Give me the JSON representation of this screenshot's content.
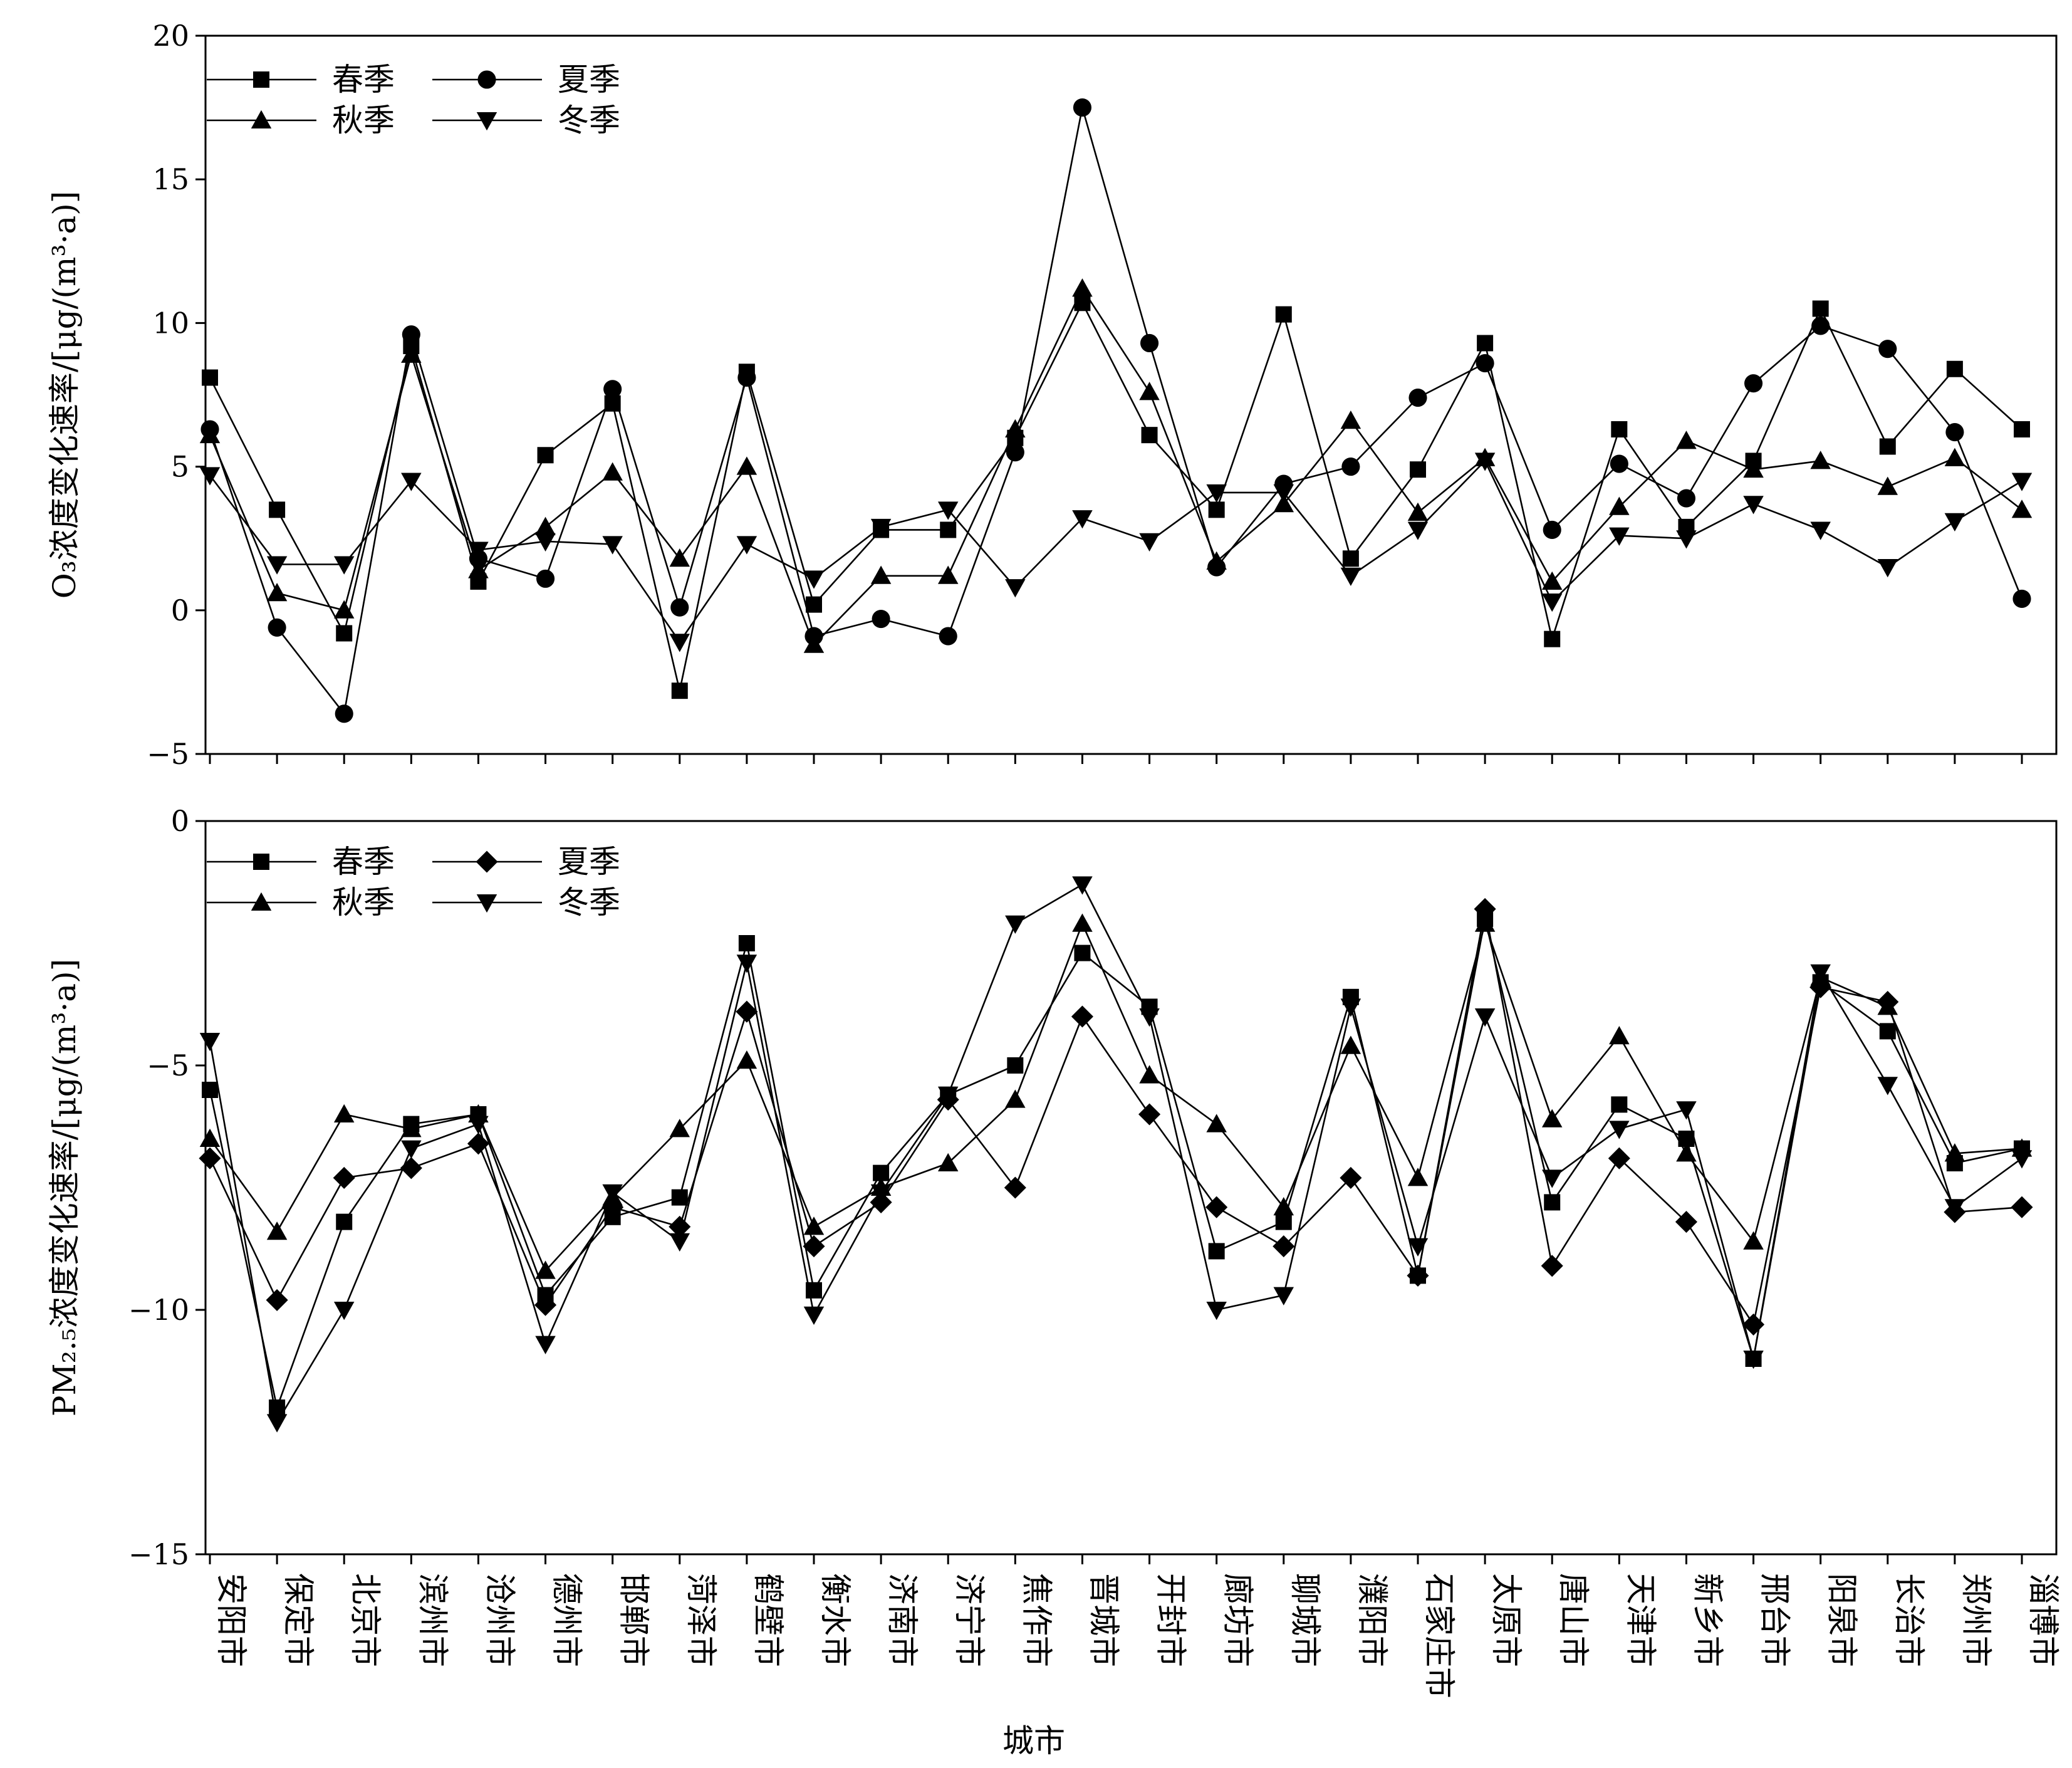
{
  "colors": {
    "line": "#000000",
    "background": "#ffffff"
  },
  "shared_xlabel": "城市",
  "chart_data": [
    {
      "type": "line",
      "ylabel": "O₃浓度变化速率/[μg/(m³·a)]",
      "ylim": [
        -5,
        20
      ],
      "yticks": [
        -5,
        0,
        5,
        10,
        15,
        20
      ],
      "grid": false,
      "legend_position": "top-left",
      "categories": [
        "安阳市",
        "保定市",
        "北京市",
        "滨州市",
        "沧州市",
        "德州市",
        "邯郸市",
        "菏泽市",
        "鹤壁市",
        "衡水市",
        "济南市",
        "济宁市",
        "焦作市",
        "晋城市",
        "开封市",
        "廊坊市",
        "聊城市",
        "濮阳市",
        "石家庄市",
        "太原市",
        "唐山市",
        "天津市",
        "新乡市",
        "邢台市",
        "阳泉市",
        "长治市",
        "郑州市",
        "淄博市"
      ],
      "series": [
        {
          "name": "春季",
          "marker": "square",
          "values": [
            8.1,
            3.5,
            -0.8,
            9.2,
            1.0,
            5.4,
            7.2,
            -2.8,
            8.3,
            0.2,
            2.8,
            2.8,
            6.0,
            10.7,
            6.1,
            3.5,
            10.3,
            1.8,
            4.9,
            9.3,
            -1.0,
            6.3,
            2.9,
            5.2,
            10.5,
            5.7,
            8.4,
            6.3
          ]
        },
        {
          "name": "夏季",
          "marker": "circle",
          "values": [
            6.3,
            -0.6,
            -3.6,
            9.6,
            1.8,
            1.1,
            7.7,
            0.1,
            8.1,
            -0.9,
            -0.3,
            -0.9,
            5.5,
            17.5,
            9.3,
            1.5,
            4.4,
            5.0,
            7.4,
            8.6,
            2.8,
            5.1,
            3.9,
            7.9,
            9.9,
            9.1,
            6.2,
            0.4
          ]
        },
        {
          "name": "秋季",
          "marker": "triangle-up",
          "values": [
            6.1,
            0.6,
            0.0,
            8.9,
            1.4,
            2.9,
            4.8,
            1.8,
            5.0,
            -1.2,
            1.2,
            1.2,
            6.3,
            11.2,
            7.6,
            1.7,
            3.7,
            6.6,
            3.4,
            5.3,
            1.0,
            3.6,
            5.9,
            4.9,
            5.2,
            4.3,
            5.3,
            3.5
          ]
        },
        {
          "name": "冬季",
          "marker": "triangle-down",
          "values": [
            4.7,
            1.6,
            1.6,
            4.5,
            2.1,
            2.4,
            2.3,
            -1.1,
            2.3,
            1.1,
            2.9,
            3.5,
            0.8,
            3.2,
            2.4,
            4.1,
            4.1,
            1.2,
            2.8,
            5.2,
            0.3,
            2.6,
            2.5,
            3.7,
            2.8,
            1.5,
            3.1,
            4.5
          ]
        }
      ]
    },
    {
      "type": "line",
      "ylabel": "PM₂.₅浓度变化速率/[μg/(m³·a)]",
      "ylim": [
        -15,
        0
      ],
      "yticks": [
        -15,
        -10,
        -5,
        0
      ],
      "grid": false,
      "legend_position": "top-left",
      "categories": [
        "安阳市",
        "保定市",
        "北京市",
        "滨州市",
        "沧州市",
        "德州市",
        "邯郸市",
        "菏泽市",
        "鹤壁市",
        "衡水市",
        "济南市",
        "济宁市",
        "焦作市",
        "晋城市",
        "开封市",
        "廊坊市",
        "聊城市",
        "濮阳市",
        "石家庄市",
        "太原市",
        "唐山市",
        "天津市",
        "新乡市",
        "邢台市",
        "阳泉市",
        "长治市",
        "郑州市",
        "淄博市"
      ],
      "series": [
        {
          "name": "春季",
          "marker": "square",
          "values": [
            -5.5,
            -12.0,
            -8.2,
            -6.2,
            -6.0,
            -9.7,
            -8.1,
            -7.7,
            -2.5,
            -9.6,
            -7.2,
            -5.6,
            -5.0,
            -2.7,
            -3.8,
            -8.8,
            -8.2,
            -3.6,
            -9.3,
            -2.0,
            -7.8,
            -5.8,
            -6.5,
            -11.0,
            -3.3,
            -4.3,
            -7.0,
            -6.7
          ]
        },
        {
          "name": "夏季",
          "marker": "diamond",
          "values": [
            -6.9,
            -9.8,
            -7.3,
            -7.1,
            -6.6,
            -9.9,
            -7.9,
            -8.3,
            -3.9,
            -8.7,
            -7.8,
            -5.7,
            -7.5,
            -4.0,
            -6.0,
            -7.9,
            -8.7,
            -7.3,
            -9.3,
            -1.8,
            -9.1,
            -6.9,
            -8.2,
            -10.3,
            -3.4,
            -3.7,
            -8.0,
            -7.9
          ]
        },
        {
          "name": "秋季",
          "marker": "triangle-up",
          "values": [
            -6.5,
            -8.4,
            -6.0,
            -6.3,
            -6.0,
            -9.2,
            -7.7,
            -6.3,
            -4.9,
            -8.3,
            -7.5,
            -7.0,
            -5.7,
            -2.1,
            -5.2,
            -6.2,
            -7.9,
            -4.6,
            -7.3,
            -2.1,
            -6.1,
            -4.4,
            -6.8,
            -8.6,
            -3.2,
            -3.8,
            -6.8,
            -6.7
          ]
        },
        {
          "name": "冬季",
          "marker": "triangle-down",
          "values": [
            -4.5,
            -12.3,
            -10.0,
            -6.7,
            -6.2,
            -10.7,
            -7.6,
            -8.6,
            -2.9,
            -10.1,
            -7.6,
            -5.6,
            -2.1,
            -1.3,
            -4.0,
            -10.0,
            -9.7,
            -3.8,
            -8.7,
            -4.0,
            -7.3,
            -6.3,
            -5.9,
            -11.0,
            -3.1,
            -5.4,
            -7.9,
            -6.9
          ]
        }
      ]
    }
  ]
}
